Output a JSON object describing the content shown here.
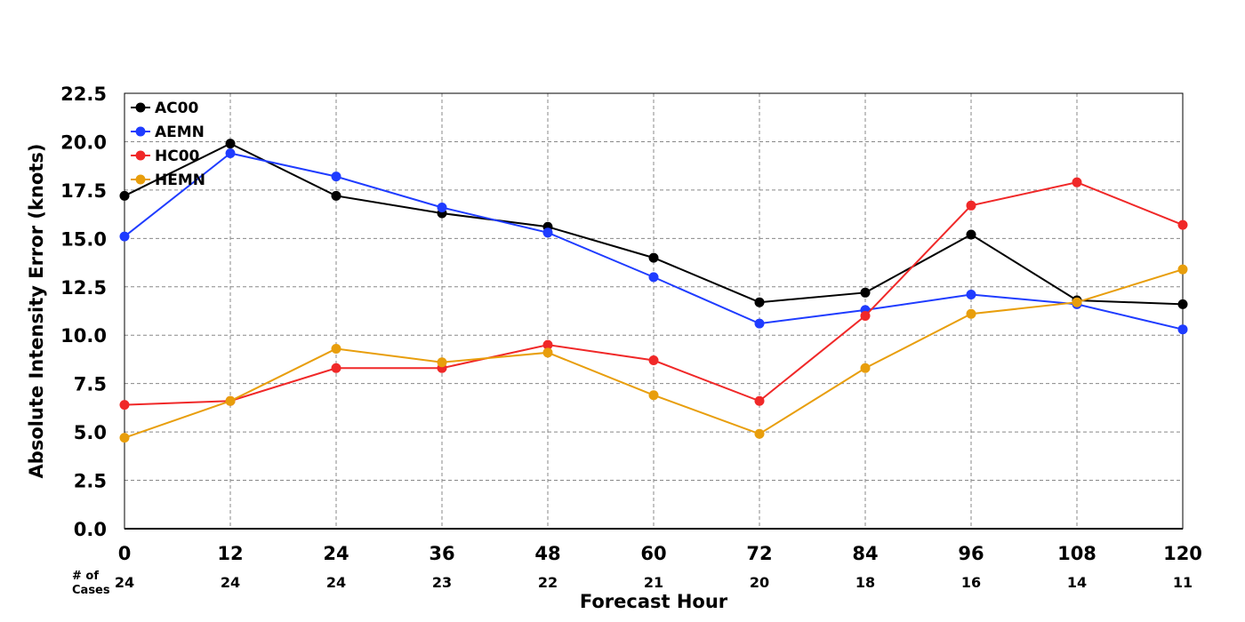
{
  "chart_data": {
    "type": "line",
    "xlabel": "Forecast Hour",
    "ylabel": "Absolute Intensity Error (knots)",
    "x": [
      0,
      12,
      24,
      36,
      48,
      60,
      72,
      84,
      96,
      108,
      120
    ],
    "xlim": [
      0,
      120
    ],
    "ylim": [
      0,
      22.5
    ],
    "yticks": [
      "0.0",
      "2.5",
      "5.0",
      "7.5",
      "10.0",
      "12.5",
      "15.0",
      "17.5",
      "20.0",
      "22.5"
    ],
    "grid": true,
    "legend_position": "top-left",
    "cases_label_line1": "# of",
    "cases_label_line2": "Cases",
    "cases": [
      24,
      24,
      24,
      23,
      22,
      21,
      20,
      18,
      16,
      14,
      11
    ],
    "series": [
      {
        "name": "AC00",
        "color": "#000000",
        "values": [
          17.2,
          19.9,
          17.2,
          16.3,
          15.6,
          14.0,
          11.7,
          12.2,
          15.2,
          11.8,
          11.6
        ]
      },
      {
        "name": "AEMN",
        "color": "#1f3cff",
        "values": [
          15.1,
          19.4,
          18.2,
          16.6,
          15.3,
          13.0,
          10.6,
          11.3,
          12.1,
          11.6,
          10.3
        ]
      },
      {
        "name": "HC00",
        "color": "#f02828",
        "values": [
          6.4,
          6.6,
          8.3,
          8.3,
          9.5,
          8.7,
          6.6,
          11.0,
          16.7,
          17.9,
          15.7
        ]
      },
      {
        "name": "HEMN",
        "color": "#e89e0c",
        "values": [
          4.7,
          6.6,
          9.3,
          8.6,
          9.1,
          6.9,
          4.9,
          8.3,
          11.1,
          11.7,
          13.4
        ]
      }
    ]
  }
}
